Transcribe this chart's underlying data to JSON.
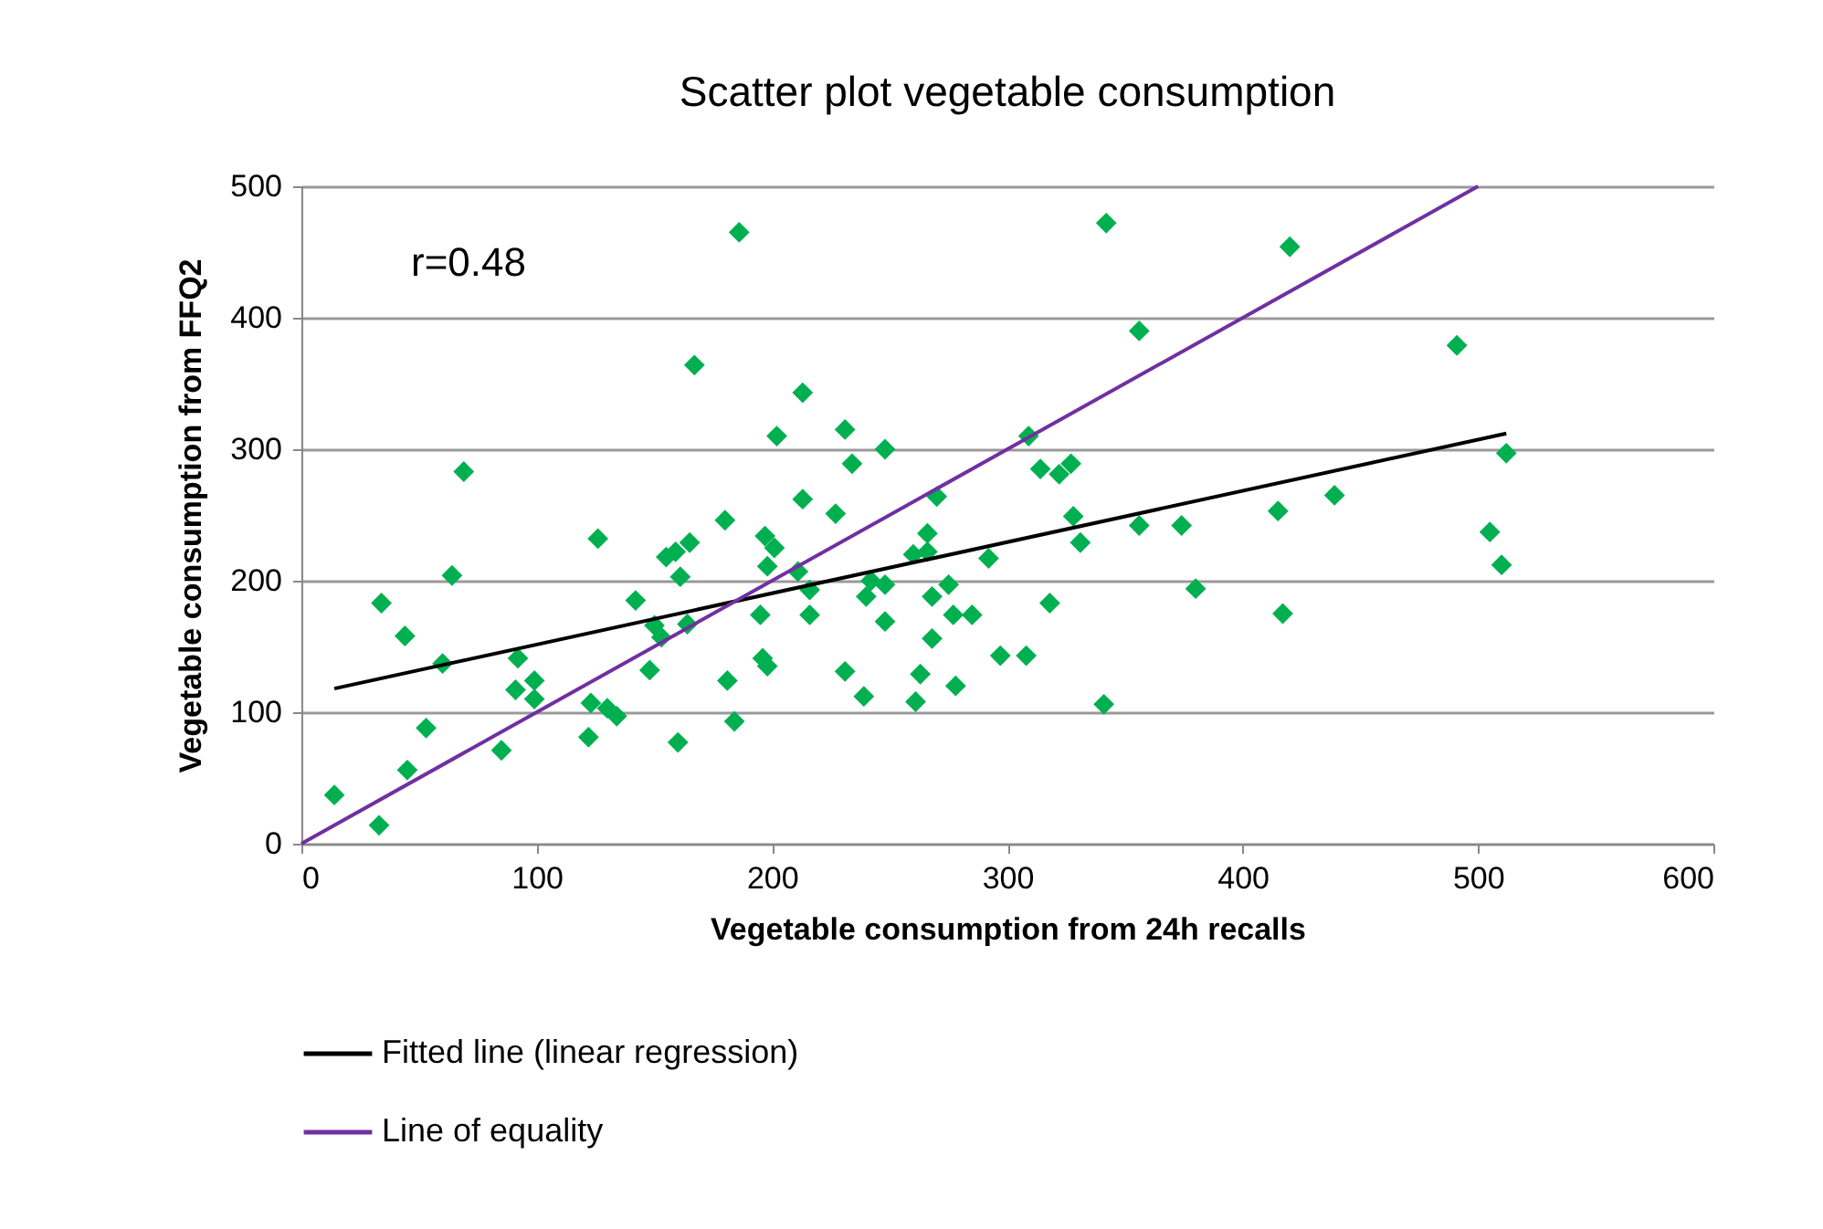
{
  "chart_data": {
    "type": "scatter",
    "title": "Scatter plot vegetable consumption",
    "xlabel": "Vegetable consumption  from 24h recalls",
    "ylabel": "Vegetable consumption  from FFQ2",
    "annotations": [
      "r=0.48"
    ],
    "xlim": [
      0,
      600
    ],
    "xticks": [
      0,
      100,
      200,
      300,
      400,
      500,
      600
    ],
    "ylim": [
      0,
      500
    ],
    "yticks": [
      0,
      100,
      200,
      300,
      400,
      500
    ],
    "grid": "y",
    "legend": "bottom",
    "series": [
      {
        "marker": "diamond",
        "color": "#00b050",
        "x": [
          14,
          33,
          34,
          44,
          45,
          53,
          60,
          64,
          69,
          85,
          92,
          91,
          99,
          99,
          122,
          123,
          126,
          130,
          134,
          142,
          148,
          150,
          153,
          155,
          159,
          161,
          160,
          164,
          165,
          167,
          180,
          181,
          184,
          186,
          195,
          196,
          198,
          197,
          198,
          201,
          202,
          211,
          213,
          213,
          216,
          216,
          227,
          231,
          231,
          234,
          239,
          240,
          242,
          248,
          248,
          248,
          260,
          261,
          263,
          266,
          266,
          268,
          268,
          270,
          275,
          277,
          278,
          285,
          292,
          297,
          308,
          309,
          314,
          318,
          322,
          327,
          328,
          331,
          341,
          342,
          356,
          356,
          374,
          380,
          415,
          417,
          420,
          439,
          491,
          505,
          510,
          512
        ],
        "values": [
          37,
          14,
          183,
          158,
          56,
          88,
          137,
          204,
          283,
          71,
          141,
          117,
          124,
          110,
          81,
          107,
          232,
          103,
          97,
          185,
          132,
          166,
          157,
          218,
          222,
          203,
          77,
          167,
          229,
          364,
          246,
          124,
          93,
          465,
          174,
          141,
          135,
          234,
          211,
          225,
          310,
          207,
          343,
          262,
          193,
          174,
          251,
          131,
          315,
          289,
          112,
          188,
          200,
          300,
          197,
          169,
          220,
          108,
          129,
          222,
          236,
          188,
          156,
          264,
          197,
          174,
          120,
          174,
          217,
          143,
          143,
          310,
          285,
          183,
          281,
          289,
          249,
          229,
          106,
          472,
          242,
          390,
          242,
          194,
          253,
          175,
          454,
          265,
          379,
          237,
          212,
          297
        ]
      },
      {
        "type": "line",
        "name": "Fitted line (linear regression)",
        "color": "#000000",
        "x": [
          14,
          512
        ],
        "values": [
          118,
          312
        ]
      },
      {
        "type": "line",
        "name": "Line of equality",
        "color": "#7030a0",
        "x": [
          0,
          500
        ],
        "values": [
          0,
          500
        ]
      }
    ]
  }
}
